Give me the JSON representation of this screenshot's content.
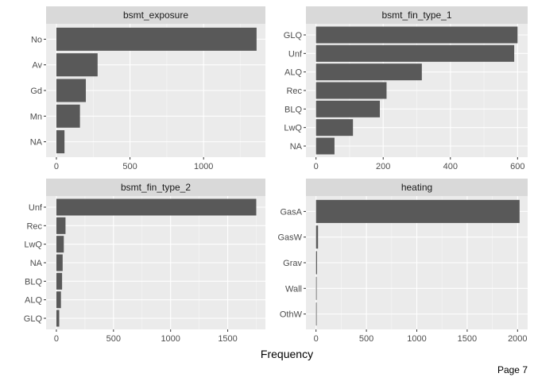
{
  "footer": {
    "page_label": "Page 7"
  },
  "chart_data": [
    {
      "type": "bar",
      "orientation": "horizontal",
      "title": "bsmt_exposure",
      "categories": [
        "No",
        "Av",
        "Gd",
        "Mn",
        "NA"
      ],
      "values": [
        1360,
        280,
        200,
        160,
        55
      ],
      "xlim": [
        -70,
        1420
      ],
      "xticks": [
        0,
        500,
        1000
      ]
    },
    {
      "type": "bar",
      "orientation": "horizontal",
      "title": "bsmt_fin_type_1",
      "categories": [
        "GLQ",
        "Unf",
        "ALQ",
        "Rec",
        "BLQ",
        "LwQ",
        "NA"
      ],
      "values": [
        600,
        590,
        315,
        210,
        190,
        110,
        55
      ],
      "xlim": [
        -30,
        630
      ],
      "xticks": [
        0,
        200,
        400,
        600
      ]
    },
    {
      "type": "bar",
      "orientation": "horizontal",
      "title": "bsmt_fin_type_2",
      "categories": [
        "Unf",
        "Rec",
        "LwQ",
        "NA",
        "BLQ",
        "ALQ",
        "GLQ"
      ],
      "values": [
        1750,
        80,
        65,
        55,
        50,
        40,
        25
      ],
      "xlim": [
        -90,
        1830
      ],
      "xticks": [
        0,
        500,
        1000,
        1500
      ]
    },
    {
      "type": "bar",
      "orientation": "horizontal",
      "title": "heating",
      "categories": [
        "GasA",
        "GasW",
        "Grav",
        "Wall",
        "OthW"
      ],
      "values": [
        2020,
        20,
        10,
        5,
        2
      ],
      "xlim": [
        -100,
        2100
      ],
      "xticks": [
        0,
        500,
        1000,
        1500,
        2000
      ]
    }
  ],
  "shared": {
    "xlabel": "Frequency"
  },
  "style": {
    "panel_background": "#ebebeb",
    "strip_background": "#d9d9d9",
    "bar_fill": "#595959",
    "grid_major": "#ffffff",
    "grid_minor": "#f5f5f5"
  }
}
